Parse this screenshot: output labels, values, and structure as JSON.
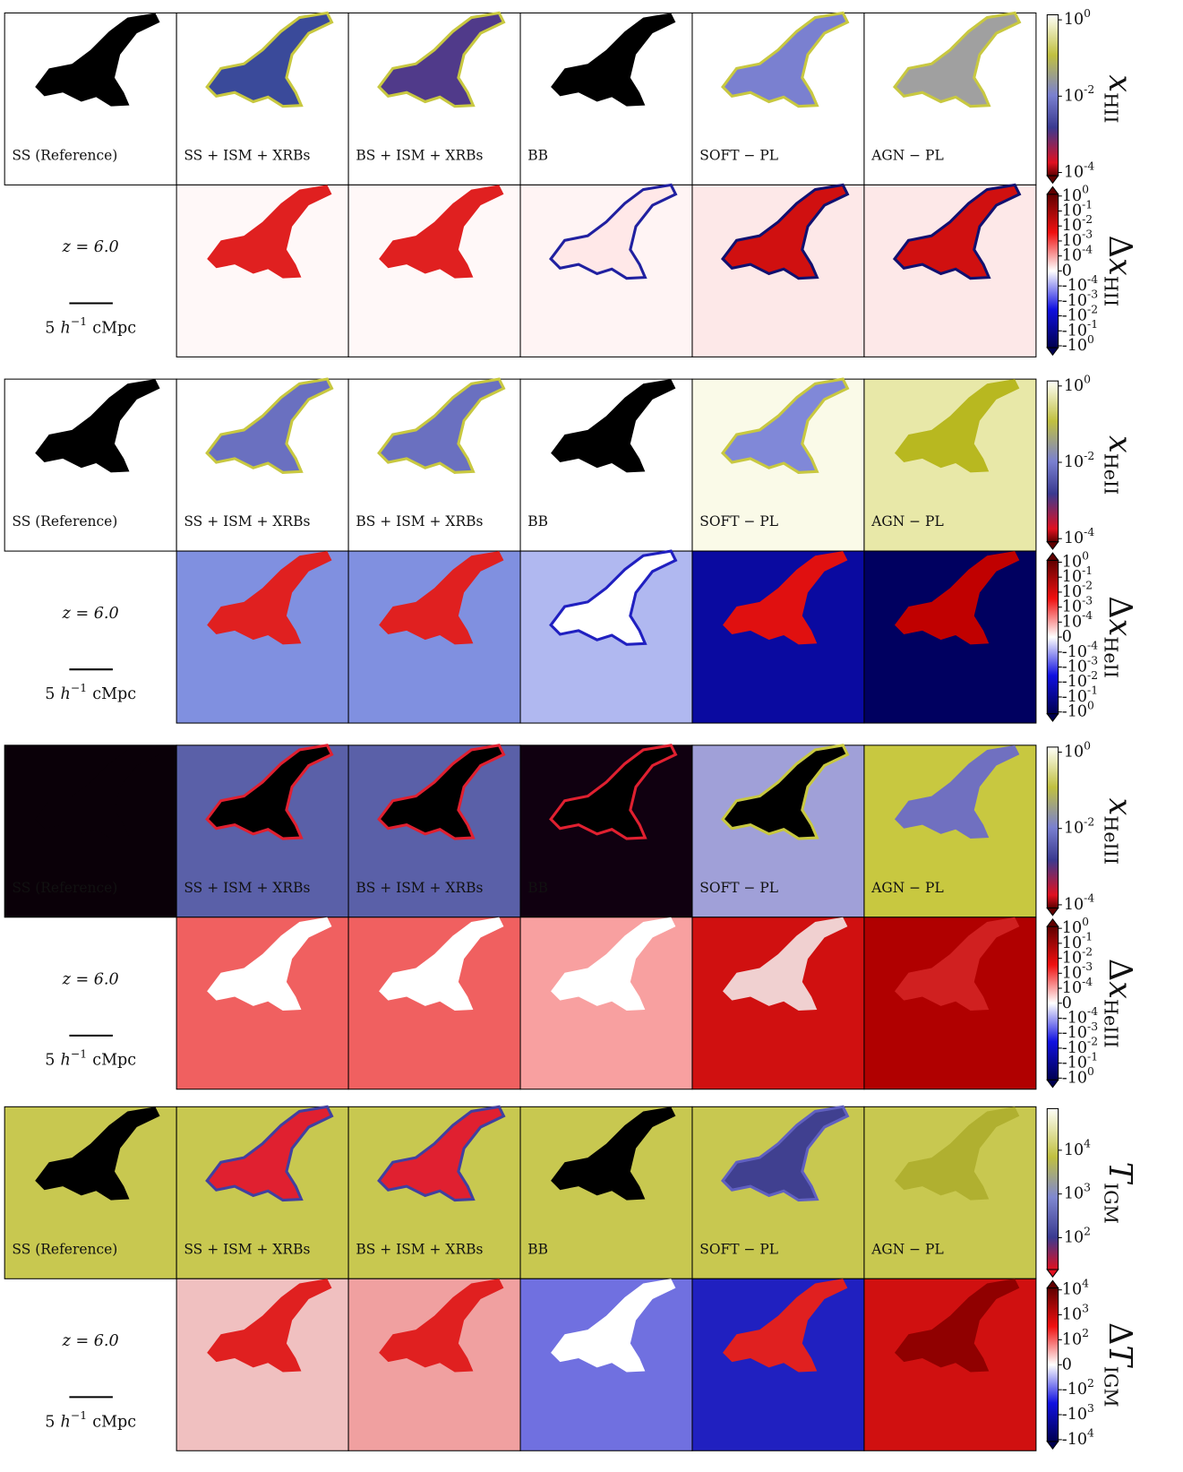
{
  "blocks": [
    {
      "quantity": "x",
      "subscript": "HII",
      "diff_prefix": "Δ",
      "panel_labels": [
        "SS (Reference)",
        "SS + ISM + XRBs",
        "BS + ISM + XRBs",
        "BB",
        "SOFT − PL",
        "AGN − PL"
      ],
      "colorbar_ticks": [
        {
          "base": "10",
          "exp": "0"
        },
        {
          "base": "10",
          "exp": "-2"
        },
        {
          "base": "10",
          "exp": "-4"
        }
      ],
      "diff_ticks": [
        {
          "base": "10",
          "exp": "0"
        },
        {
          "base": "10",
          "exp": "-1"
        },
        {
          "base": "10",
          "exp": "-2"
        },
        {
          "base": "10",
          "exp": "-3"
        },
        {
          "base": "10",
          "exp": "-4"
        },
        {
          "base": "0"
        },
        {
          "base": "-10",
          "exp": "-4"
        },
        {
          "base": "-10",
          "exp": "-3"
        },
        {
          "base": "-10",
          "exp": "-2"
        },
        {
          "base": "-10",
          "exp": "-1"
        },
        {
          "base": "-10",
          "exp": "0"
        }
      ],
      "redshift": "z = 6.0",
      "scale_value": "5",
      "scale_h": "h",
      "scale_exp": "−1",
      "scale_unit": "cMpc"
    },
    {
      "quantity": "x",
      "subscript": "HeII",
      "diff_prefix": "Δ",
      "panel_labels": [
        "SS (Reference)",
        "SS + ISM + XRBs",
        "BS + ISM + XRBs",
        "BB",
        "SOFT − PL",
        "AGN − PL"
      ],
      "colorbar_ticks": [
        {
          "base": "10",
          "exp": "0"
        },
        {
          "base": "10",
          "exp": "-2"
        },
        {
          "base": "10",
          "exp": "-4"
        }
      ],
      "diff_ticks": [
        {
          "base": "10",
          "exp": "0"
        },
        {
          "base": "10",
          "exp": "-1"
        },
        {
          "base": "10",
          "exp": "-2"
        },
        {
          "base": "10",
          "exp": "-3"
        },
        {
          "base": "10",
          "exp": "-4"
        },
        {
          "base": "0"
        },
        {
          "base": "-10",
          "exp": "-4"
        },
        {
          "base": "-10",
          "exp": "-3"
        },
        {
          "base": "-10",
          "exp": "-2"
        },
        {
          "base": "-10",
          "exp": "-1"
        },
        {
          "base": "-10",
          "exp": "0"
        }
      ],
      "redshift": "z = 6.0",
      "scale_value": "5",
      "scale_h": "h",
      "scale_exp": "−1",
      "scale_unit": "cMpc"
    },
    {
      "quantity": "x",
      "subscript": "HeIII",
      "diff_prefix": "Δ",
      "panel_labels": [
        "SS (Reference)",
        "SS + ISM + XRBs",
        "BS + ISM + XRBs",
        "BB",
        "SOFT − PL",
        "AGN − PL"
      ],
      "colorbar_ticks": [
        {
          "base": "10",
          "exp": "0"
        },
        {
          "base": "10",
          "exp": "-2"
        },
        {
          "base": "10",
          "exp": "-4"
        }
      ],
      "diff_ticks": [
        {
          "base": "10",
          "exp": "0"
        },
        {
          "base": "10",
          "exp": "-1"
        },
        {
          "base": "10",
          "exp": "-2"
        },
        {
          "base": "10",
          "exp": "-3"
        },
        {
          "base": "10",
          "exp": "-4"
        },
        {
          "base": "0"
        },
        {
          "base": "-10",
          "exp": "-4"
        },
        {
          "base": "-10",
          "exp": "-3"
        },
        {
          "base": "-10",
          "exp": "-2"
        },
        {
          "base": "-10",
          "exp": "-1"
        },
        {
          "base": "-10",
          "exp": "0"
        }
      ],
      "redshift": "z = 6.0",
      "scale_value": "5",
      "scale_h": "h",
      "scale_exp": "−1",
      "scale_unit": "cMpc"
    },
    {
      "quantity": "T",
      "subscript": "IGM",
      "diff_prefix": "Δ",
      "panel_labels": [
        "SS (Reference)",
        "SS + ISM + XRBs",
        "BS + ISM + XRBs",
        "BB",
        "SOFT − PL",
        "AGN − PL"
      ],
      "colorbar_ticks": [
        {
          "base": "10",
          "exp": "4"
        },
        {
          "base": "10",
          "exp": "3"
        },
        {
          "base": "10",
          "exp": "2"
        }
      ],
      "diff_ticks": [
        {
          "base": "10",
          "exp": "4"
        },
        {
          "base": "10",
          "exp": "3"
        },
        {
          "base": "10",
          "exp": "2"
        },
        {
          "base": "0"
        },
        {
          "base": "-10",
          "exp": "2"
        },
        {
          "base": "-10",
          "exp": "3"
        },
        {
          "base": "-10",
          "exp": "4"
        }
      ],
      "redshift": "z = 6.0",
      "scale_value": "5",
      "scale_h": "h",
      "scale_exp": "−1",
      "scale_unit": "cMpc"
    }
  ]
}
